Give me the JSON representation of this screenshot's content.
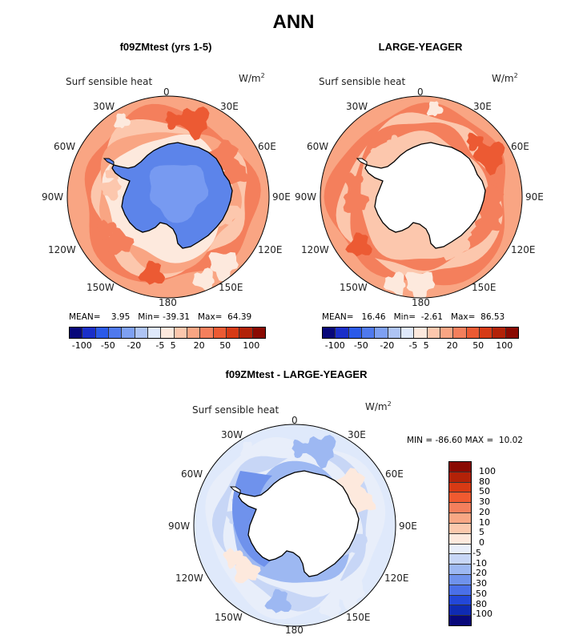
{
  "title": "ANN",
  "panels": [
    {
      "title": "f09ZMtest (yrs 1-5)",
      "variable": "Surf sensible heat",
      "units": "W/m",
      "units_sup": "2",
      "mean_label": "MEAN=",
      "mean": "3.95",
      "min_label": "Min=",
      "min": "-39.31",
      "max_label": "Max=",
      "max": "64.39",
      "ticks": [
        "-100",
        "-50",
        "-20",
        "-5",
        "5",
        "20",
        "50",
        "100"
      ]
    },
    {
      "title": "LARGE-YEAGER",
      "variable": "Surf sensible heat",
      "units": "W/m",
      "units_sup": "2",
      "mean_label": "MEAN=",
      "mean": "16.46",
      "min_label": "Min=",
      "min": "-2.61",
      "max_label": "Max=",
      "max": "86.53",
      "ticks": [
        "-100",
        "-50",
        "-20",
        "-5",
        "5",
        "20",
        "50",
        "100"
      ]
    }
  ],
  "diff_panel": {
    "title": "f09ZMtest - LARGE-YEAGER",
    "variable": "Surf sensible heat",
    "units": "W/m",
    "units_sup": "2",
    "minmax": "MIN = -86.60 MAX =  10.02",
    "ticks": [
      "100",
      "80",
      "50",
      "30",
      "20",
      "10",
      "5",
      "0",
      "-5",
      "-10",
      "-20",
      "-30",
      "-50",
      "-80",
      "-100"
    ]
  },
  "longitude_labels": {
    "top": "0",
    "w30": "30W",
    "e30": "30E",
    "w60": "60W",
    "e60": "60E",
    "w90": "90W",
    "e90": "90E",
    "w120": "120W",
    "e120": "120E",
    "w150": "150W",
    "e150": "150E",
    "bottom": "180"
  },
  "colors": {
    "abs_scale": [
      "#08087a",
      "#1a2fc9",
      "#2b5ae8",
      "#4f79ee",
      "#7ea0f2",
      "#aec4f5",
      "#dfe9fb",
      "#fde9dd",
      "#fcc7ad",
      "#f9a583",
      "#f47f5c",
      "#ec5a33",
      "#d63a15",
      "#b22208",
      "#8a0a02"
    ],
    "diff_scale": [
      "#8a0a02",
      "#b32208",
      "#d83a14",
      "#f05a30",
      "#f47f5c",
      "#f8a784",
      "#fbc9ad",
      "#fde9dd",
      "#e8eefa",
      "#c7d6f6",
      "#9db8f2",
      "#6f92ec",
      "#4a6fe8",
      "#2347d8",
      "#0f2bb3",
      "#08087a"
    ],
    "land": "#ffffff",
    "antarctica_model": "#5c84ea"
  }
}
